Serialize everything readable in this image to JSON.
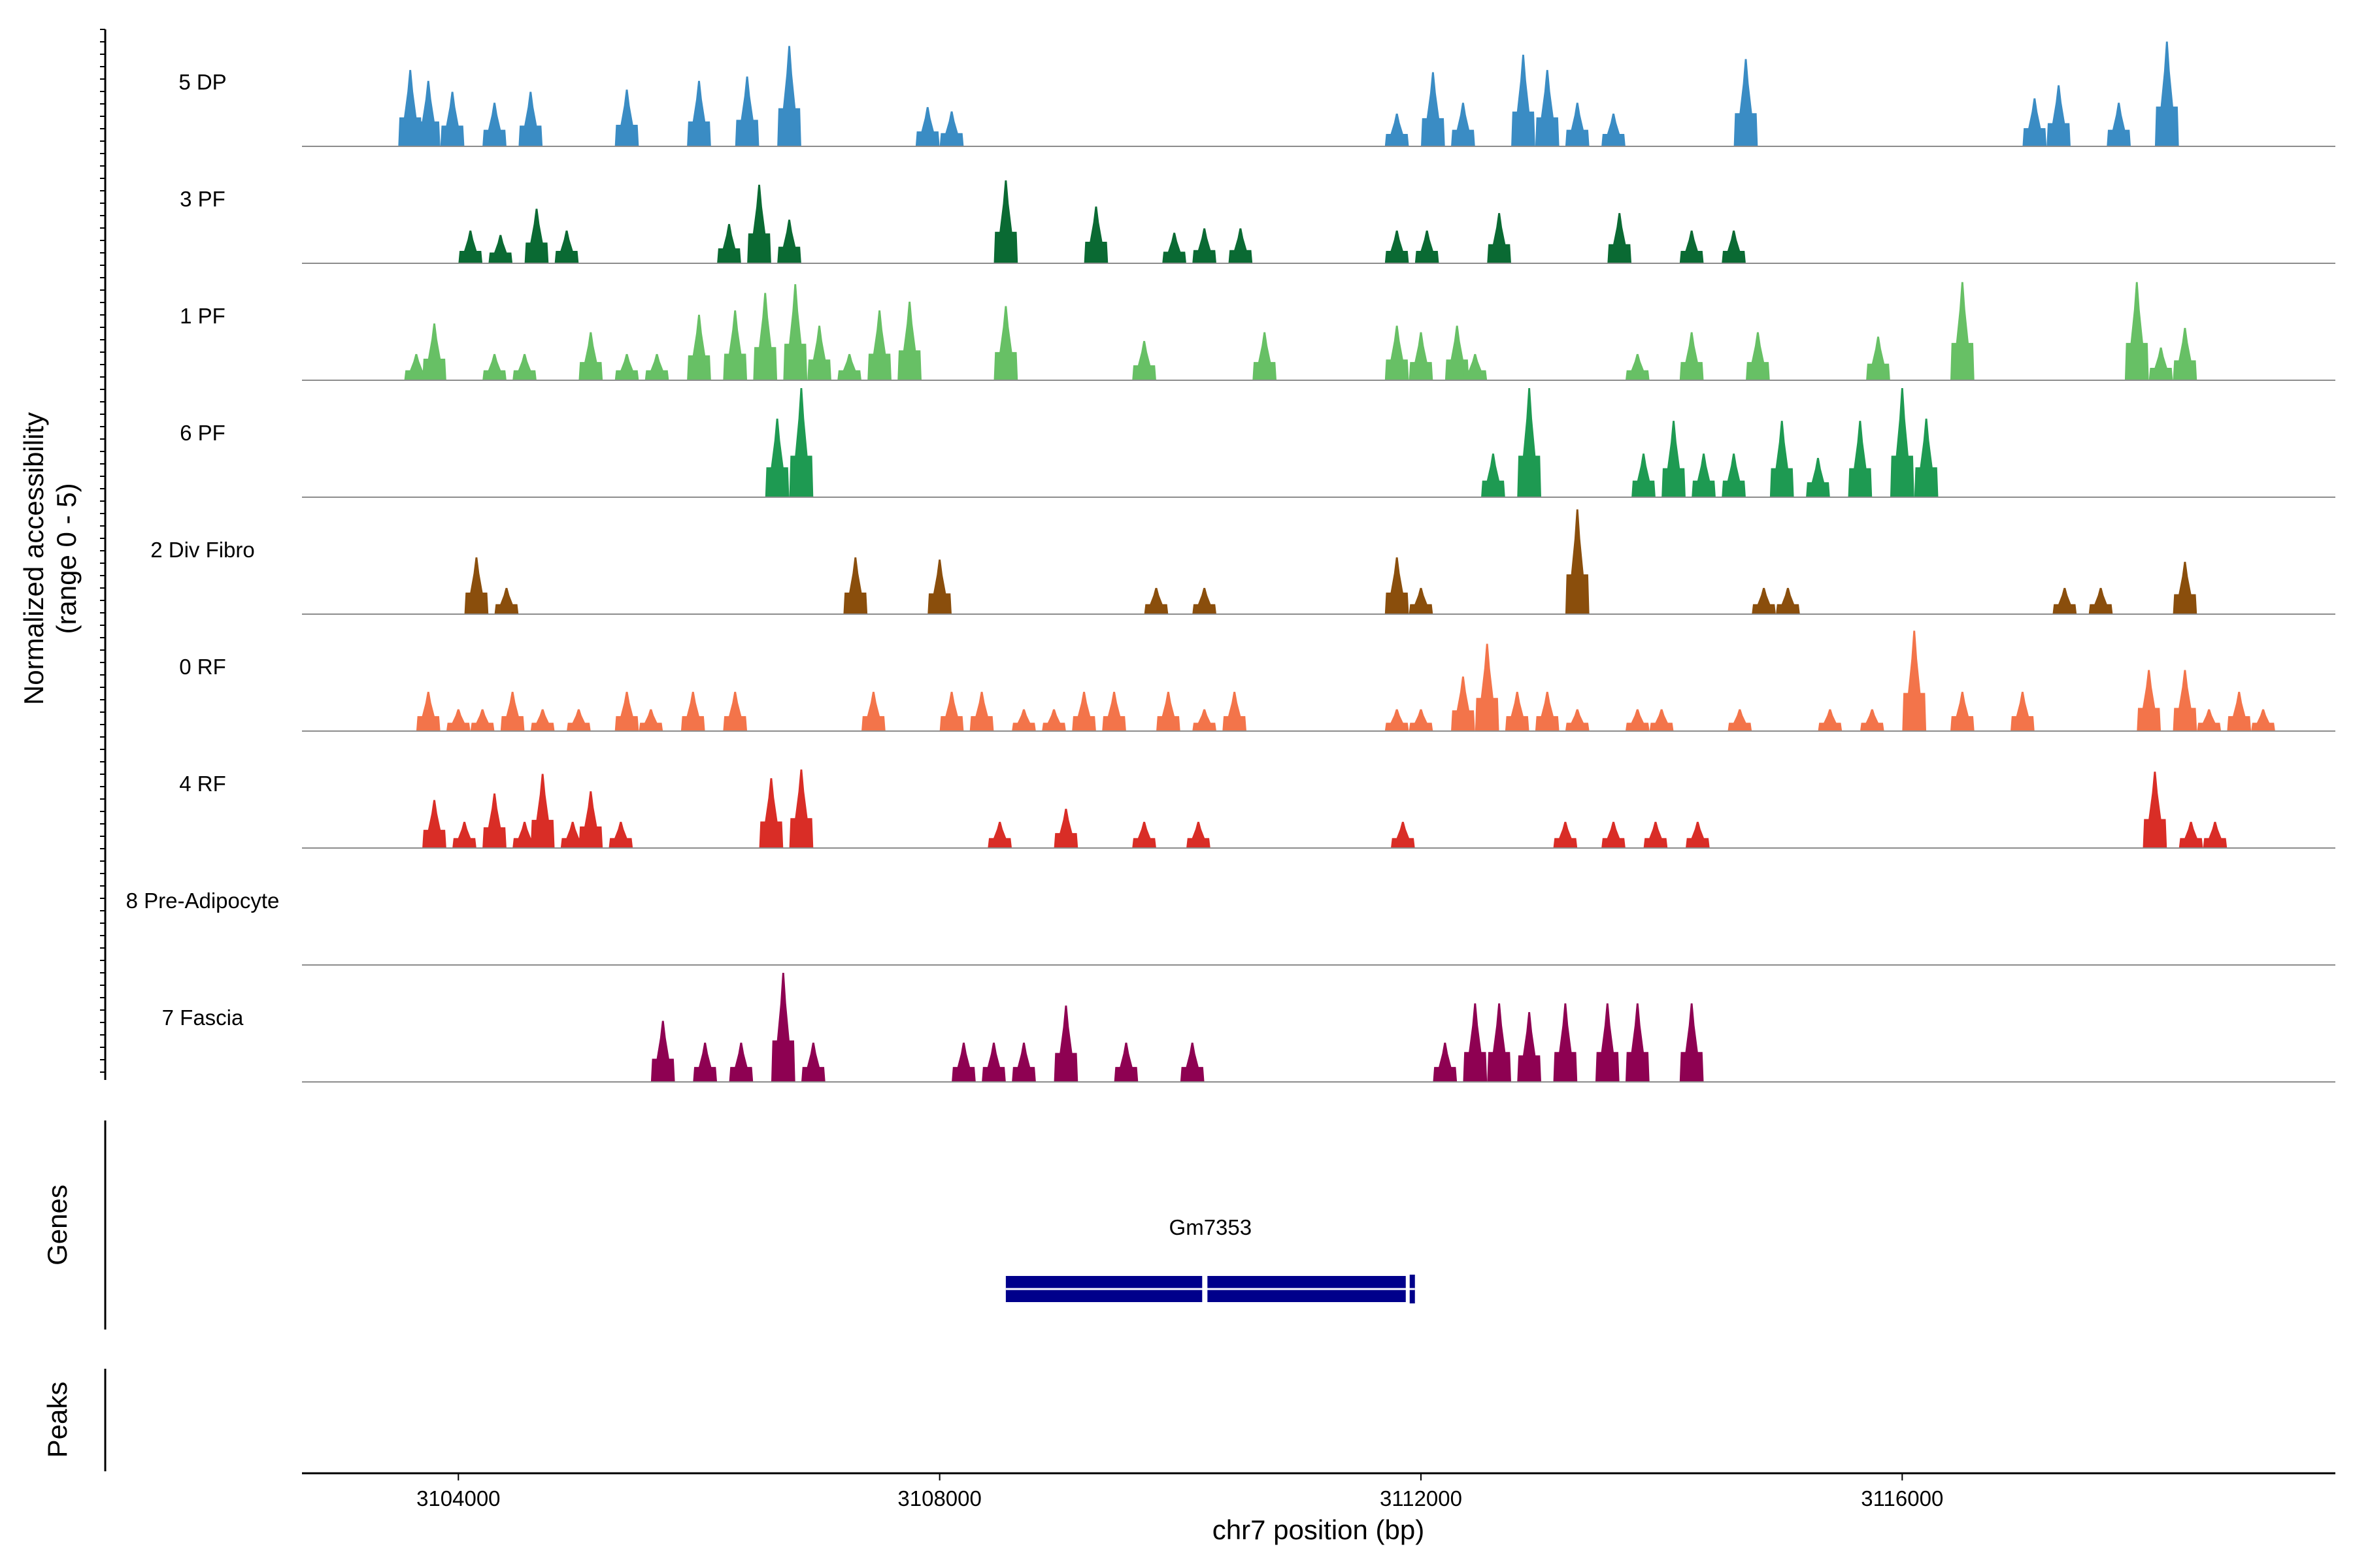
{
  "chart_data": {
    "type": "area",
    "title": "",
    "xlabel": "chr7 position (bp)",
    "ylabel": "Normalized accessibility",
    "ylabel_sub": "(range 0 - 5)",
    "xlim": [
      3102700,
      3119600
    ],
    "x_ticks": [
      3104000,
      3108000,
      3112000,
      3116000
    ],
    "ylim": [
      0,
      5
    ],
    "colors": {
      "axis": "#000000",
      "baseline": "#8c8c8c",
      "gene": "#00008b"
    },
    "tracks": [
      {
        "label": "5 DP",
        "color": "#3a8cc4",
        "peaks": [
          [
            3103600,
            3.5
          ],
          [
            3103750,
            3.0
          ],
          [
            3103950,
            2.5
          ],
          [
            3104300,
            2.0
          ],
          [
            3104600,
            2.5
          ],
          [
            3105400,
            2.6
          ],
          [
            3106000,
            3.0
          ],
          [
            3106400,
            3.2
          ],
          [
            3106750,
            4.6
          ],
          [
            3107900,
            1.8
          ],
          [
            3108100,
            1.6
          ],
          [
            3111800,
            1.5
          ],
          [
            3112100,
            3.4
          ],
          [
            3112350,
            2.0
          ],
          [
            3112850,
            4.2
          ],
          [
            3113050,
            3.5
          ],
          [
            3113300,
            2.0
          ],
          [
            3113600,
            1.5
          ],
          [
            3114700,
            4.0
          ],
          [
            3117100,
            2.2
          ],
          [
            3117300,
            2.8
          ],
          [
            3117800,
            2.0
          ],
          [
            3118200,
            4.8
          ]
        ]
      },
      {
        "label": "3 PF",
        "color": "#0a6a33",
        "peaks": [
          [
            3104100,
            1.5
          ],
          [
            3104350,
            1.3
          ],
          [
            3104650,
            2.5
          ],
          [
            3104900,
            1.5
          ],
          [
            3106250,
            1.8
          ],
          [
            3106500,
            3.6
          ],
          [
            3106750,
            2.0
          ],
          [
            3108550,
            3.8
          ],
          [
            3109300,
            2.6
          ],
          [
            3109950,
            1.4
          ],
          [
            3110200,
            1.6
          ],
          [
            3110500,
            1.6
          ],
          [
            3111800,
            1.5
          ],
          [
            3112050,
            1.5
          ],
          [
            3112650,
            2.3
          ],
          [
            3113650,
            2.3
          ],
          [
            3114250,
            1.5
          ],
          [
            3114600,
            1.5
          ]
        ]
      },
      {
        "label": "1 PF",
        "color": "#67c065",
        "peaks": [
          [
            3103650,
            1.2
          ],
          [
            3103800,
            2.6
          ],
          [
            3104300,
            1.2
          ],
          [
            3104550,
            1.2
          ],
          [
            3105100,
            2.2
          ],
          [
            3105400,
            1.2
          ],
          [
            3105650,
            1.2
          ],
          [
            3106000,
            3.0
          ],
          [
            3106300,
            3.2
          ],
          [
            3106550,
            4.0
          ],
          [
            3106800,
            4.4
          ],
          [
            3107000,
            2.5
          ],
          [
            3107250,
            1.2
          ],
          [
            3107500,
            3.2
          ],
          [
            3107750,
            3.6
          ],
          [
            3108550,
            3.4
          ],
          [
            3109700,
            1.8
          ],
          [
            3110700,
            2.2
          ],
          [
            3111800,
            2.5
          ],
          [
            3112000,
            2.2
          ],
          [
            3112300,
            2.5
          ],
          [
            3112450,
            1.2
          ],
          [
            3113800,
            1.2
          ],
          [
            3114250,
            2.2
          ],
          [
            3114800,
            2.2
          ],
          [
            3115800,
            2.0
          ],
          [
            3116500,
            4.5
          ],
          [
            3117950,
            4.5
          ],
          [
            3118150,
            1.5
          ],
          [
            3118350,
            2.4
          ]
        ]
      },
      {
        "label": "6 PF",
        "color": "#1e9a52",
        "peaks": [
          [
            3106650,
            3.6
          ],
          [
            3106850,
            5.0
          ],
          [
            3112600,
            2.0
          ],
          [
            3112900,
            5.0
          ],
          [
            3113850,
            2.0
          ],
          [
            3114100,
            3.5
          ],
          [
            3114350,
            2.0
          ],
          [
            3114600,
            2.0
          ],
          [
            3115000,
            3.5
          ],
          [
            3115300,
            1.8
          ],
          [
            3115650,
            3.5
          ],
          [
            3116000,
            5.0
          ],
          [
            3116200,
            3.6
          ]
        ]
      },
      {
        "label": "2 Div Fibro",
        "color": "#8a4e0c",
        "peaks": [
          [
            3104150,
            2.6
          ],
          [
            3104400,
            1.2
          ],
          [
            3107300,
            2.6
          ],
          [
            3108000,
            2.5
          ],
          [
            3109800,
            1.2
          ],
          [
            3110200,
            1.2
          ],
          [
            3111800,
            2.6
          ],
          [
            3112000,
            1.2
          ],
          [
            3113300,
            4.8
          ],
          [
            3114850,
            1.2
          ],
          [
            3115050,
            1.2
          ],
          [
            3117350,
            1.2
          ],
          [
            3117650,
            1.2
          ],
          [
            3118350,
            2.4
          ]
        ]
      },
      {
        "label": "0 RF",
        "color": "#f3744a",
        "peaks": [
          [
            3103750,
            1.8
          ],
          [
            3104000,
            1.0
          ],
          [
            3104200,
            1.0
          ],
          [
            3104450,
            1.8
          ],
          [
            3104700,
            1.0
          ],
          [
            3105000,
            1.0
          ],
          [
            3105400,
            1.8
          ],
          [
            3105600,
            1.0
          ],
          [
            3105950,
            1.8
          ],
          [
            3106300,
            1.8
          ],
          [
            3107450,
            1.8
          ],
          [
            3108100,
            1.8
          ],
          [
            3108350,
            1.8
          ],
          [
            3108700,
            1.0
          ],
          [
            3108950,
            1.0
          ],
          [
            3109200,
            1.8
          ],
          [
            3109450,
            1.8
          ],
          [
            3109900,
            1.8
          ],
          [
            3110200,
            1.0
          ],
          [
            3110450,
            1.8
          ],
          [
            3111800,
            1.0
          ],
          [
            3112000,
            1.0
          ],
          [
            3112350,
            2.5
          ],
          [
            3112550,
            4.0
          ],
          [
            3112800,
            1.8
          ],
          [
            3113050,
            1.8
          ],
          [
            3113300,
            1.0
          ],
          [
            3113800,
            1.0
          ],
          [
            3114000,
            1.0
          ],
          [
            3114650,
            1.0
          ],
          [
            3115400,
            1.0
          ],
          [
            3115750,
            1.0
          ],
          [
            3116100,
            4.6
          ],
          [
            3116500,
            1.8
          ],
          [
            3117000,
            1.8
          ],
          [
            3118050,
            2.8
          ],
          [
            3118350,
            2.8
          ],
          [
            3118550,
            1.0
          ],
          [
            3118800,
            1.8
          ],
          [
            3119000,
            1.0
          ]
        ]
      },
      {
        "label": "4 RF",
        "color": "#d92d26",
        "peaks": [
          [
            3103800,
            2.2
          ],
          [
            3104050,
            1.2
          ],
          [
            3104300,
            2.5
          ],
          [
            3104550,
            1.2
          ],
          [
            3104700,
            3.4
          ],
          [
            3104950,
            1.2
          ],
          [
            3105100,
            2.6
          ],
          [
            3105350,
            1.2
          ],
          [
            3106600,
            3.2
          ],
          [
            3106850,
            3.6
          ],
          [
            3108500,
            1.2
          ],
          [
            3109050,
            1.8
          ],
          [
            3109700,
            1.2
          ],
          [
            3110150,
            1.2
          ],
          [
            3111850,
            1.2
          ],
          [
            3113200,
            1.2
          ],
          [
            3113600,
            1.2
          ],
          [
            3113950,
            1.2
          ],
          [
            3114300,
            1.2
          ],
          [
            3118100,
            3.5
          ],
          [
            3118400,
            1.2
          ],
          [
            3118600,
            1.2
          ]
        ]
      },
      {
        "label": "8 Pre-Adipocyte",
        "color": "#e7298a",
        "peaks": []
      },
      {
        "label": "7 Fascia",
        "color": "#8e0152",
        "peaks": [
          [
            3105700,
            2.8
          ],
          [
            3106050,
            1.8
          ],
          [
            3106350,
            1.8
          ],
          [
            3106700,
            5.2
          ],
          [
            3106950,
            1.8
          ],
          [
            3108200,
            1.8
          ],
          [
            3108450,
            1.8
          ],
          [
            3108700,
            1.8
          ],
          [
            3109050,
            3.5
          ],
          [
            3109550,
            1.8
          ],
          [
            3110100,
            1.8
          ],
          [
            3112200,
            1.8
          ],
          [
            3112450,
            3.6
          ],
          [
            3112650,
            3.6
          ],
          [
            3112900,
            3.2
          ],
          [
            3113200,
            3.6
          ],
          [
            3113550,
            3.6
          ],
          [
            3113800,
            3.6
          ],
          [
            3114250,
            3.6
          ]
        ]
      }
    ],
    "genes_panel_label": "Genes",
    "peaks_panel_label": "Peaks",
    "genes": [
      {
        "name": "Gm7353",
        "start": 3108550,
        "end": 3111950
      }
    ]
  }
}
